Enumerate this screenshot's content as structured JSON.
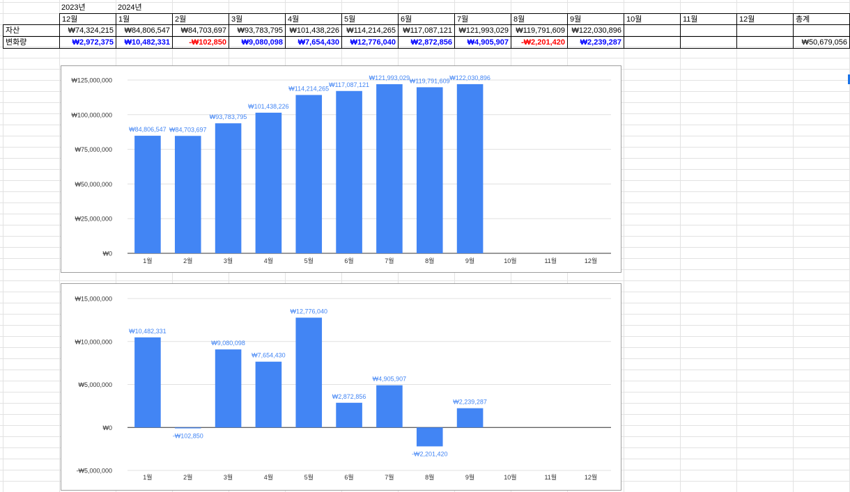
{
  "sheet": {
    "year_labels": [
      "2023년",
      "2024년"
    ],
    "month_headers": [
      "12월",
      "1월",
      "2월",
      "3월",
      "4월",
      "5월",
      "6월",
      "7월",
      "8월",
      "9월",
      "10월",
      "11월",
      "12월",
      "총계"
    ],
    "rows": [
      {
        "label": "자산",
        "values": [
          "₩74,324,215",
          "₩84,806,547",
          "₩84,703,697",
          "₩93,783,795",
          "₩101,438,226",
          "₩114,214,265",
          "₩117,087,121",
          "₩121,993,029",
          "₩119,791,609",
          "₩122,030,896",
          "",
          "",
          "",
          ""
        ]
      },
      {
        "label": "변화량",
        "values": [
          "₩2,972,375",
          "₩10,482,331",
          "-₩102,850",
          "₩9,080,098",
          "₩7,654,430",
          "₩12,776,040",
          "₩2,872,856",
          "₩4,905,907",
          "-₩2,201,420",
          "₩2,239,287",
          "",
          "",
          "",
          "₩50,679,056"
        ]
      }
    ]
  },
  "colors": {
    "bar": "#4285f4",
    "label": "#4285f4",
    "positive": "#0000ff",
    "negative": "#ff0000",
    "axis": "#333333",
    "grid": "#e0e0e0"
  },
  "chart_data": [
    {
      "type": "bar",
      "categories": [
        "1월",
        "2월",
        "3월",
        "4월",
        "5월",
        "6월",
        "7월",
        "8월",
        "9월",
        "10월",
        "11월",
        "12월"
      ],
      "values": [
        84806547,
        84703697,
        93783795,
        101438226,
        114214265,
        117087121,
        121993029,
        119791609,
        122030896,
        null,
        null,
        null
      ],
      "data_labels": [
        "₩84,806,547",
        "₩84,703,697",
        "₩93,783,795",
        "₩101,438,226",
        "₩114,214,265",
        "₩117,087,121",
        "₩121,993,029",
        "₩119,791,609",
        "₩122,030,896",
        "",
        "",
        ""
      ],
      "ylim": [
        0,
        125000000
      ],
      "yticks": [
        0,
        25000000,
        50000000,
        75000000,
        100000000,
        125000000
      ],
      "ytick_labels": [
        "₩0",
        "₩25,000,000",
        "₩50,000,000",
        "₩75,000,000",
        "₩100,000,000",
        "₩125,000,000"
      ],
      "grid": true,
      "title": "",
      "xlabel": "",
      "ylabel": ""
    },
    {
      "type": "bar",
      "categories": [
        "1월",
        "2월",
        "3월",
        "4월",
        "5월",
        "6월",
        "7월",
        "8월",
        "9월",
        "10월",
        "11월",
        "12월"
      ],
      "values": [
        10482331,
        -102850,
        9080098,
        7654430,
        12776040,
        2872856,
        4905907,
        -2201420,
        2239287,
        null,
        null,
        null
      ],
      "data_labels": [
        "₩10,482,331",
        "-₩102,850",
        "₩9,080,098",
        "₩7,654,430",
        "₩12,776,040",
        "₩2,872,856",
        "₩4,905,907",
        "-₩2,201,420",
        "₩2,239,287",
        "",
        "",
        ""
      ],
      "ylim": [
        -5000000,
        15000000
      ],
      "yticks": [
        -5000000,
        0,
        5000000,
        10000000,
        15000000
      ],
      "ytick_labels": [
        "-₩5,000,000",
        "₩0",
        "₩5,000,000",
        "₩10,000,000",
        "₩15,000,000"
      ],
      "grid": true,
      "title": "",
      "xlabel": "",
      "ylabel": ""
    }
  ]
}
